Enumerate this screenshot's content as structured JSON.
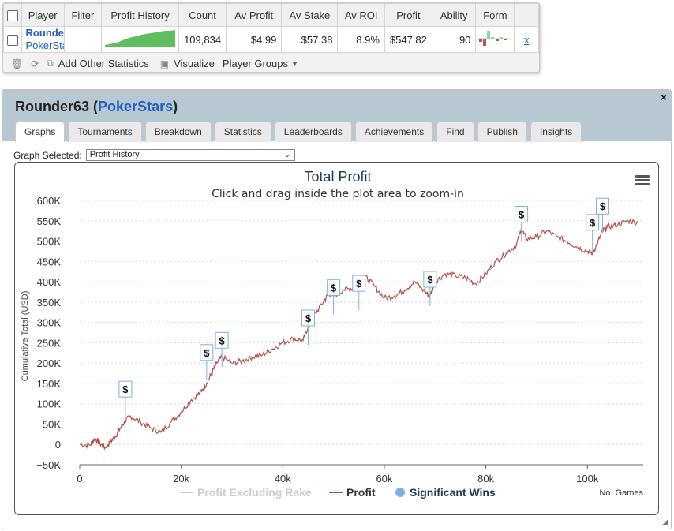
{
  "stats_table": {
    "columns": [
      "Player",
      "Filter",
      "Profit History",
      "Count",
      "Av Profit",
      "Av Stake",
      "Av ROI",
      "Profit",
      "Ability",
      "Form"
    ],
    "row": {
      "player_name": "Rounder63",
      "player_site": "PokerStars",
      "filter": "",
      "count": "109,834",
      "av_profit": "$4.99",
      "av_stake": "$57.38",
      "av_roi": "8.9%",
      "profit": "$547,82",
      "ability": "90",
      "remove_label": "x"
    }
  },
  "toolbar": {
    "add_stats_label": "Add Other Statistics",
    "visualize_label": "Visualize",
    "player_groups_label": "Player Groups"
  },
  "panel": {
    "player_name": "Rounder63",
    "player_site": "PokerStars",
    "close_label": "×",
    "tabs": [
      "Graphs",
      "Tournaments",
      "Breakdown",
      "Statistics",
      "Leaderboards",
      "Achievements",
      "Find",
      "Publish",
      "Insights"
    ],
    "active_tab": "Graphs",
    "graph_selected_label": "Graph Selected:",
    "graph_selected_value": "Profit History"
  },
  "colors": {
    "profit_line": "#b5504b",
    "rake_line": "#cccccc",
    "wins_marker": "#7eb0e6",
    "link": "#1f5fbf",
    "sparkline": "#5fbf5f",
    "header_bg": "#b7c8d3"
  },
  "chart_data": {
    "type": "line",
    "title": "Total Profit",
    "subtitle": "Click and drag inside the plot area to zoom-in",
    "xlabel": "No. Games",
    "ylabel": "Cumulative Total (USD)",
    "xlim": [
      0,
      111000
    ],
    "ylim": [
      -50000,
      600000
    ],
    "x_ticks": [
      0,
      20000,
      40000,
      60000,
      80000,
      100000
    ],
    "x_tick_labels": [
      "0",
      "20k",
      "40k",
      "60k",
      "80k",
      "100k"
    ],
    "y_ticks": [
      -50000,
      0,
      50000,
      100000,
      150000,
      200000,
      250000,
      300000,
      350000,
      400000,
      450000,
      500000,
      550000,
      600000
    ],
    "y_tick_labels": [
      "−50K",
      "0",
      "50K",
      "100K",
      "150K",
      "200K",
      "250K",
      "300K",
      "350K",
      "400K",
      "450K",
      "500K",
      "550K",
      "600K"
    ],
    "grid": true,
    "legend": {
      "placement": "bottom",
      "items": [
        "Profit Excluding Rake",
        "Profit",
        "Significant Wins"
      ]
    },
    "series": [
      {
        "name": "Profit",
        "x": [
          0,
          2000,
          3000,
          4000,
          5000,
          6000,
          7000,
          8000,
          9000,
          10000,
          12000,
          14000,
          16000,
          18000,
          20000,
          22000,
          24000,
          25000,
          26000,
          27000,
          28000,
          30000,
          32000,
          34000,
          36000,
          38000,
          40000,
          42000,
          44000,
          45000,
          46000,
          48000,
          49000,
          50000,
          52000,
          54000,
          55000,
          56000,
          58000,
          60000,
          62000,
          64000,
          66000,
          68000,
          69000,
          70000,
          72000,
          74000,
          76000,
          78000,
          80000,
          82000,
          84000,
          86000,
          87000,
          88000,
          90000,
          92000,
          94000,
          96000,
          98000,
          100000,
          101000,
          102000,
          103000,
          104000,
          106000,
          108000,
          110000
        ],
        "values": [
          0,
          -2000,
          15000,
          2000,
          -8000,
          5000,
          20000,
          40000,
          58000,
          70000,
          55000,
          40000,
          30000,
          55000,
          80000,
          110000,
          130000,
          150000,
          175000,
          200000,
          215000,
          200000,
          205000,
          215000,
          220000,
          235000,
          250000,
          260000,
          255000,
          290000,
          315000,
          350000,
          370000,
          365000,
          380000,
          385000,
          395000,
          415000,
          390000,
          360000,
          365000,
          380000,
          400000,
          375000,
          365000,
          400000,
          420000,
          415000,
          410000,
          395000,
          420000,
          450000,
          470000,
          490000,
          530000,
          505000,
          510000,
          525000,
          510000,
          500000,
          485000,
          475000,
          470000,
          495000,
          525000,
          535000,
          540000,
          550000,
          545000
        ]
      },
      {
        "name": "Significant Wins",
        "x": [
          9000,
          25000,
          28000,
          45000,
          50000,
          55000,
          69000,
          87000,
          101000,
          103000
        ],
        "values": [
          70000,
          160000,
          190000,
          245000,
          320000,
          330000,
          340000,
          500000,
          480000,
          520000
        ]
      }
    ]
  }
}
